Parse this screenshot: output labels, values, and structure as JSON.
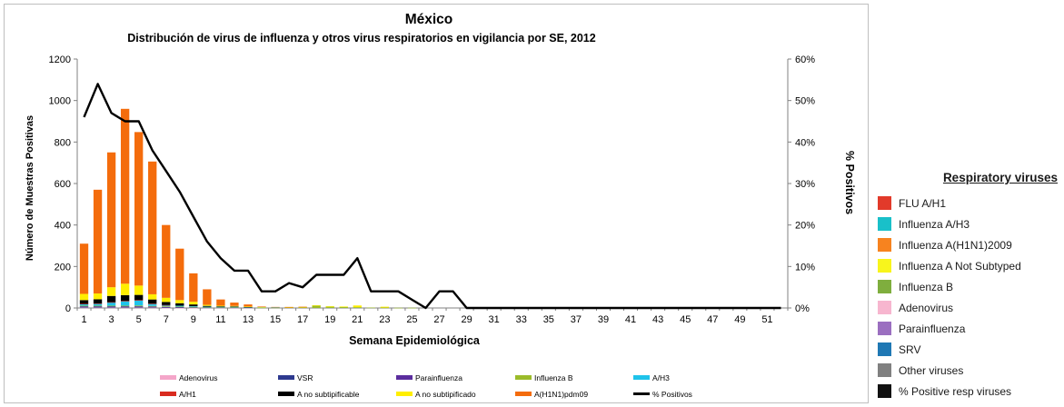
{
  "chart_data": {
    "type": "bar",
    "title": "México",
    "subtitle": "Distribución  de virus de influenza y otros virus respiratorios en vigilancia por SE, 2012",
    "xlabel": "Semana Epidemiológica",
    "ylabel": "Número de Muestras Positivas",
    "y2label": "% Positivos",
    "ylim": [
      0,
      1200
    ],
    "y2lim": [
      0,
      60
    ],
    "y_ticks": [
      "0",
      "200",
      "400",
      "600",
      "800",
      "1000",
      "1200"
    ],
    "y2_ticks": [
      "0%",
      "10%",
      "20%",
      "30%",
      "40%",
      "50%",
      "60%"
    ],
    "x": [
      1,
      2,
      3,
      4,
      5,
      6,
      7,
      8,
      9,
      10,
      11,
      12,
      13,
      14,
      15,
      16,
      17,
      18,
      19,
      20,
      21,
      22,
      23,
      24,
      25,
      26,
      27,
      28,
      29,
      30,
      31,
      32,
      33,
      34,
      35,
      36,
      37,
      38,
      39,
      40,
      41,
      42,
      43,
      44,
      45,
      46,
      47,
      48,
      49,
      50,
      51,
      52
    ],
    "x_tick_labels": [
      "1",
      "3",
      "5",
      "7",
      "9",
      "11",
      "13",
      "15",
      "17",
      "19",
      "21",
      "23",
      "25",
      "27",
      "29",
      "31",
      "33",
      "35",
      "37",
      "39",
      "41",
      "43",
      "45",
      "47",
      "49",
      "51"
    ],
    "stacked": true,
    "grid": false,
    "series": [
      {
        "name": "Adenovirus",
        "color": "#f4a6c9",
        "values": [
          2,
          2,
          2,
          2,
          2,
          2,
          1,
          1,
          1,
          1,
          1,
          1,
          1,
          0,
          0,
          0,
          0,
          0,
          0,
          0,
          0,
          0,
          0,
          0,
          0,
          0,
          0,
          0,
          0,
          0,
          0,
          0,
          0,
          0,
          0,
          0,
          0,
          0,
          0,
          0,
          0,
          0,
          0,
          0,
          0,
          0,
          0,
          0,
          0,
          0,
          0,
          0
        ]
      },
      {
        "name": "VSR",
        "color": "#2e3a8f",
        "values": [
          5,
          5,
          5,
          5,
          5,
          4,
          3,
          2,
          2,
          1,
          1,
          1,
          1,
          0,
          0,
          0,
          0,
          0,
          0,
          0,
          0,
          0,
          0,
          0,
          0,
          0,
          0,
          0,
          0,
          0,
          0,
          0,
          0,
          0,
          0,
          0,
          0,
          0,
          0,
          0,
          0,
          0,
          0,
          0,
          0,
          0,
          0,
          0,
          0,
          0,
          0,
          0
        ]
      },
      {
        "name": "Parainfluenza",
        "color": "#5b2d9e",
        "values": [
          1,
          1,
          1,
          1,
          1,
          1,
          1,
          1,
          0,
          0,
          0,
          0,
          0,
          0,
          0,
          0,
          0,
          0,
          0,
          0,
          0,
          0,
          0,
          0,
          0,
          0,
          0,
          0,
          0,
          0,
          0,
          0,
          0,
          0,
          0,
          0,
          0,
          0,
          0,
          0,
          0,
          0,
          0,
          0,
          0,
          0,
          0,
          0,
          0,
          0,
          0,
          0
        ]
      },
      {
        "name": "Influenza  B",
        "color": "#9bbb2a",
        "values": [
          3,
          3,
          3,
          3,
          4,
          3,
          3,
          3,
          3,
          2,
          2,
          2,
          2,
          2,
          2,
          3,
          4,
          12,
          6,
          5,
          4,
          2,
          2,
          1,
          1,
          0,
          0,
          0,
          0,
          0,
          0,
          0,
          0,
          0,
          0,
          0,
          0,
          0,
          0,
          0,
          0,
          0,
          0,
          0,
          0,
          0,
          0,
          0,
          0,
          0,
          0,
          0
        ]
      },
      {
        "name": "A/H3",
        "color": "#1fc3ea",
        "values": [
          8,
          10,
          16,
          22,
          25,
          10,
          5,
          4,
          3,
          2,
          2,
          2,
          1,
          1,
          1,
          0,
          0,
          0,
          0,
          0,
          0,
          0,
          0,
          0,
          0,
          0,
          0,
          0,
          0,
          0,
          0,
          0,
          0,
          0,
          0,
          0,
          0,
          0,
          0,
          0,
          0,
          0,
          0,
          0,
          0,
          0,
          0,
          0,
          0,
          0,
          0,
          0
        ]
      },
      {
        "name": "A/H1",
        "color": "#d92b1f",
        "values": [
          1,
          1,
          1,
          1,
          1,
          1,
          1,
          0,
          0,
          0,
          0,
          0,
          0,
          0,
          0,
          0,
          0,
          0,
          0,
          0,
          0,
          0,
          0,
          0,
          0,
          0,
          0,
          0,
          0,
          0,
          0,
          0,
          0,
          0,
          0,
          0,
          0,
          0,
          0,
          0,
          0,
          0,
          0,
          0,
          0,
          0,
          0,
          0,
          0,
          0,
          0,
          0
        ]
      },
      {
        "name": "A no subtipificable",
        "color": "#000000",
        "values": [
          18,
          20,
          30,
          28,
          25,
          20,
          15,
          12,
          8,
          4,
          2,
          2,
          1,
          0,
          0,
          0,
          0,
          0,
          0,
          0,
          0,
          0,
          0,
          0,
          0,
          0,
          0,
          0,
          0,
          0,
          0,
          0,
          0,
          0,
          0,
          0,
          0,
          0,
          0,
          0,
          0,
          0,
          0,
          0,
          0,
          0,
          0,
          0,
          0,
          0,
          0,
          0
        ]
      },
      {
        "name": "A no subtipificado",
        "color": "#ffee00",
        "values": [
          30,
          28,
          42,
          55,
          45,
          25,
          20,
          15,
          13,
          5,
          3,
          2,
          1,
          1,
          0,
          1,
          1,
          1,
          3,
          2,
          8,
          0,
          4,
          0,
          0,
          0,
          0,
          0,
          0,
          0,
          0,
          0,
          0,
          0,
          0,
          0,
          0,
          0,
          0,
          0,
          0,
          0,
          0,
          0,
          0,
          0,
          0,
          0,
          0,
          0,
          0,
          0
        ]
      },
      {
        "name": "A(H1N1)pdm09",
        "color": "#f46c0c",
        "values": [
          242,
          500,
          650,
          843,
          740,
          640,
          351,
          248,
          137,
          75,
          30,
          16,
          10,
          3,
          2,
          1,
          1,
          0,
          0,
          0,
          0,
          0,
          0,
          0,
          0,
          0,
          0,
          0,
          0,
          0,
          0,
          0,
          0,
          0,
          0,
          0,
          0,
          0,
          0,
          0,
          0,
          0,
          0,
          0,
          0,
          0,
          0,
          0,
          0,
          0,
          0,
          0
        ]
      }
    ],
    "line": {
      "name": "% Positivos",
      "color": "#000000",
      "axis": "right",
      "values": [
        46,
        54,
        47,
        45,
        45,
        38,
        33,
        28,
        22,
        16,
        12,
        9,
        9,
        4,
        4,
        6,
        5,
        8,
        8,
        8,
        12,
        4,
        4,
        4,
        2,
        0,
        4,
        4,
        0,
        0,
        0,
        0,
        0,
        0,
        0,
        0,
        0,
        0,
        0,
        0,
        0,
        0,
        0,
        0,
        0,
        0,
        0,
        0,
        0,
        0,
        0,
        0
      ]
    },
    "legend_placement": "bottom"
  },
  "side_legend": {
    "title": "Respiratory viruses",
    "items": [
      {
        "label": "FLU A/H1",
        "color": "#e23a2a"
      },
      {
        "label": "Influenza A/H3",
        "color": "#19c0c9"
      },
      {
        "label": "Influenza A(H1N1)2009",
        "color": "#f7831f"
      },
      {
        "label": "Influenza A Not Subtyped",
        "color": "#f8f51c"
      },
      {
        "label": "Influenza B",
        "color": "#7fae3e"
      },
      {
        "label": "Adenovirus",
        "color": "#f7b6cf"
      },
      {
        "label": "Parainfluenza",
        "color": "#9b6fc0"
      },
      {
        "label": "SRV",
        "color": "#1f78b4"
      },
      {
        "label": "Other viruses",
        "color": "#808080"
      },
      {
        "label": "% Positive resp viruses",
        "color": "#111111"
      }
    ]
  }
}
